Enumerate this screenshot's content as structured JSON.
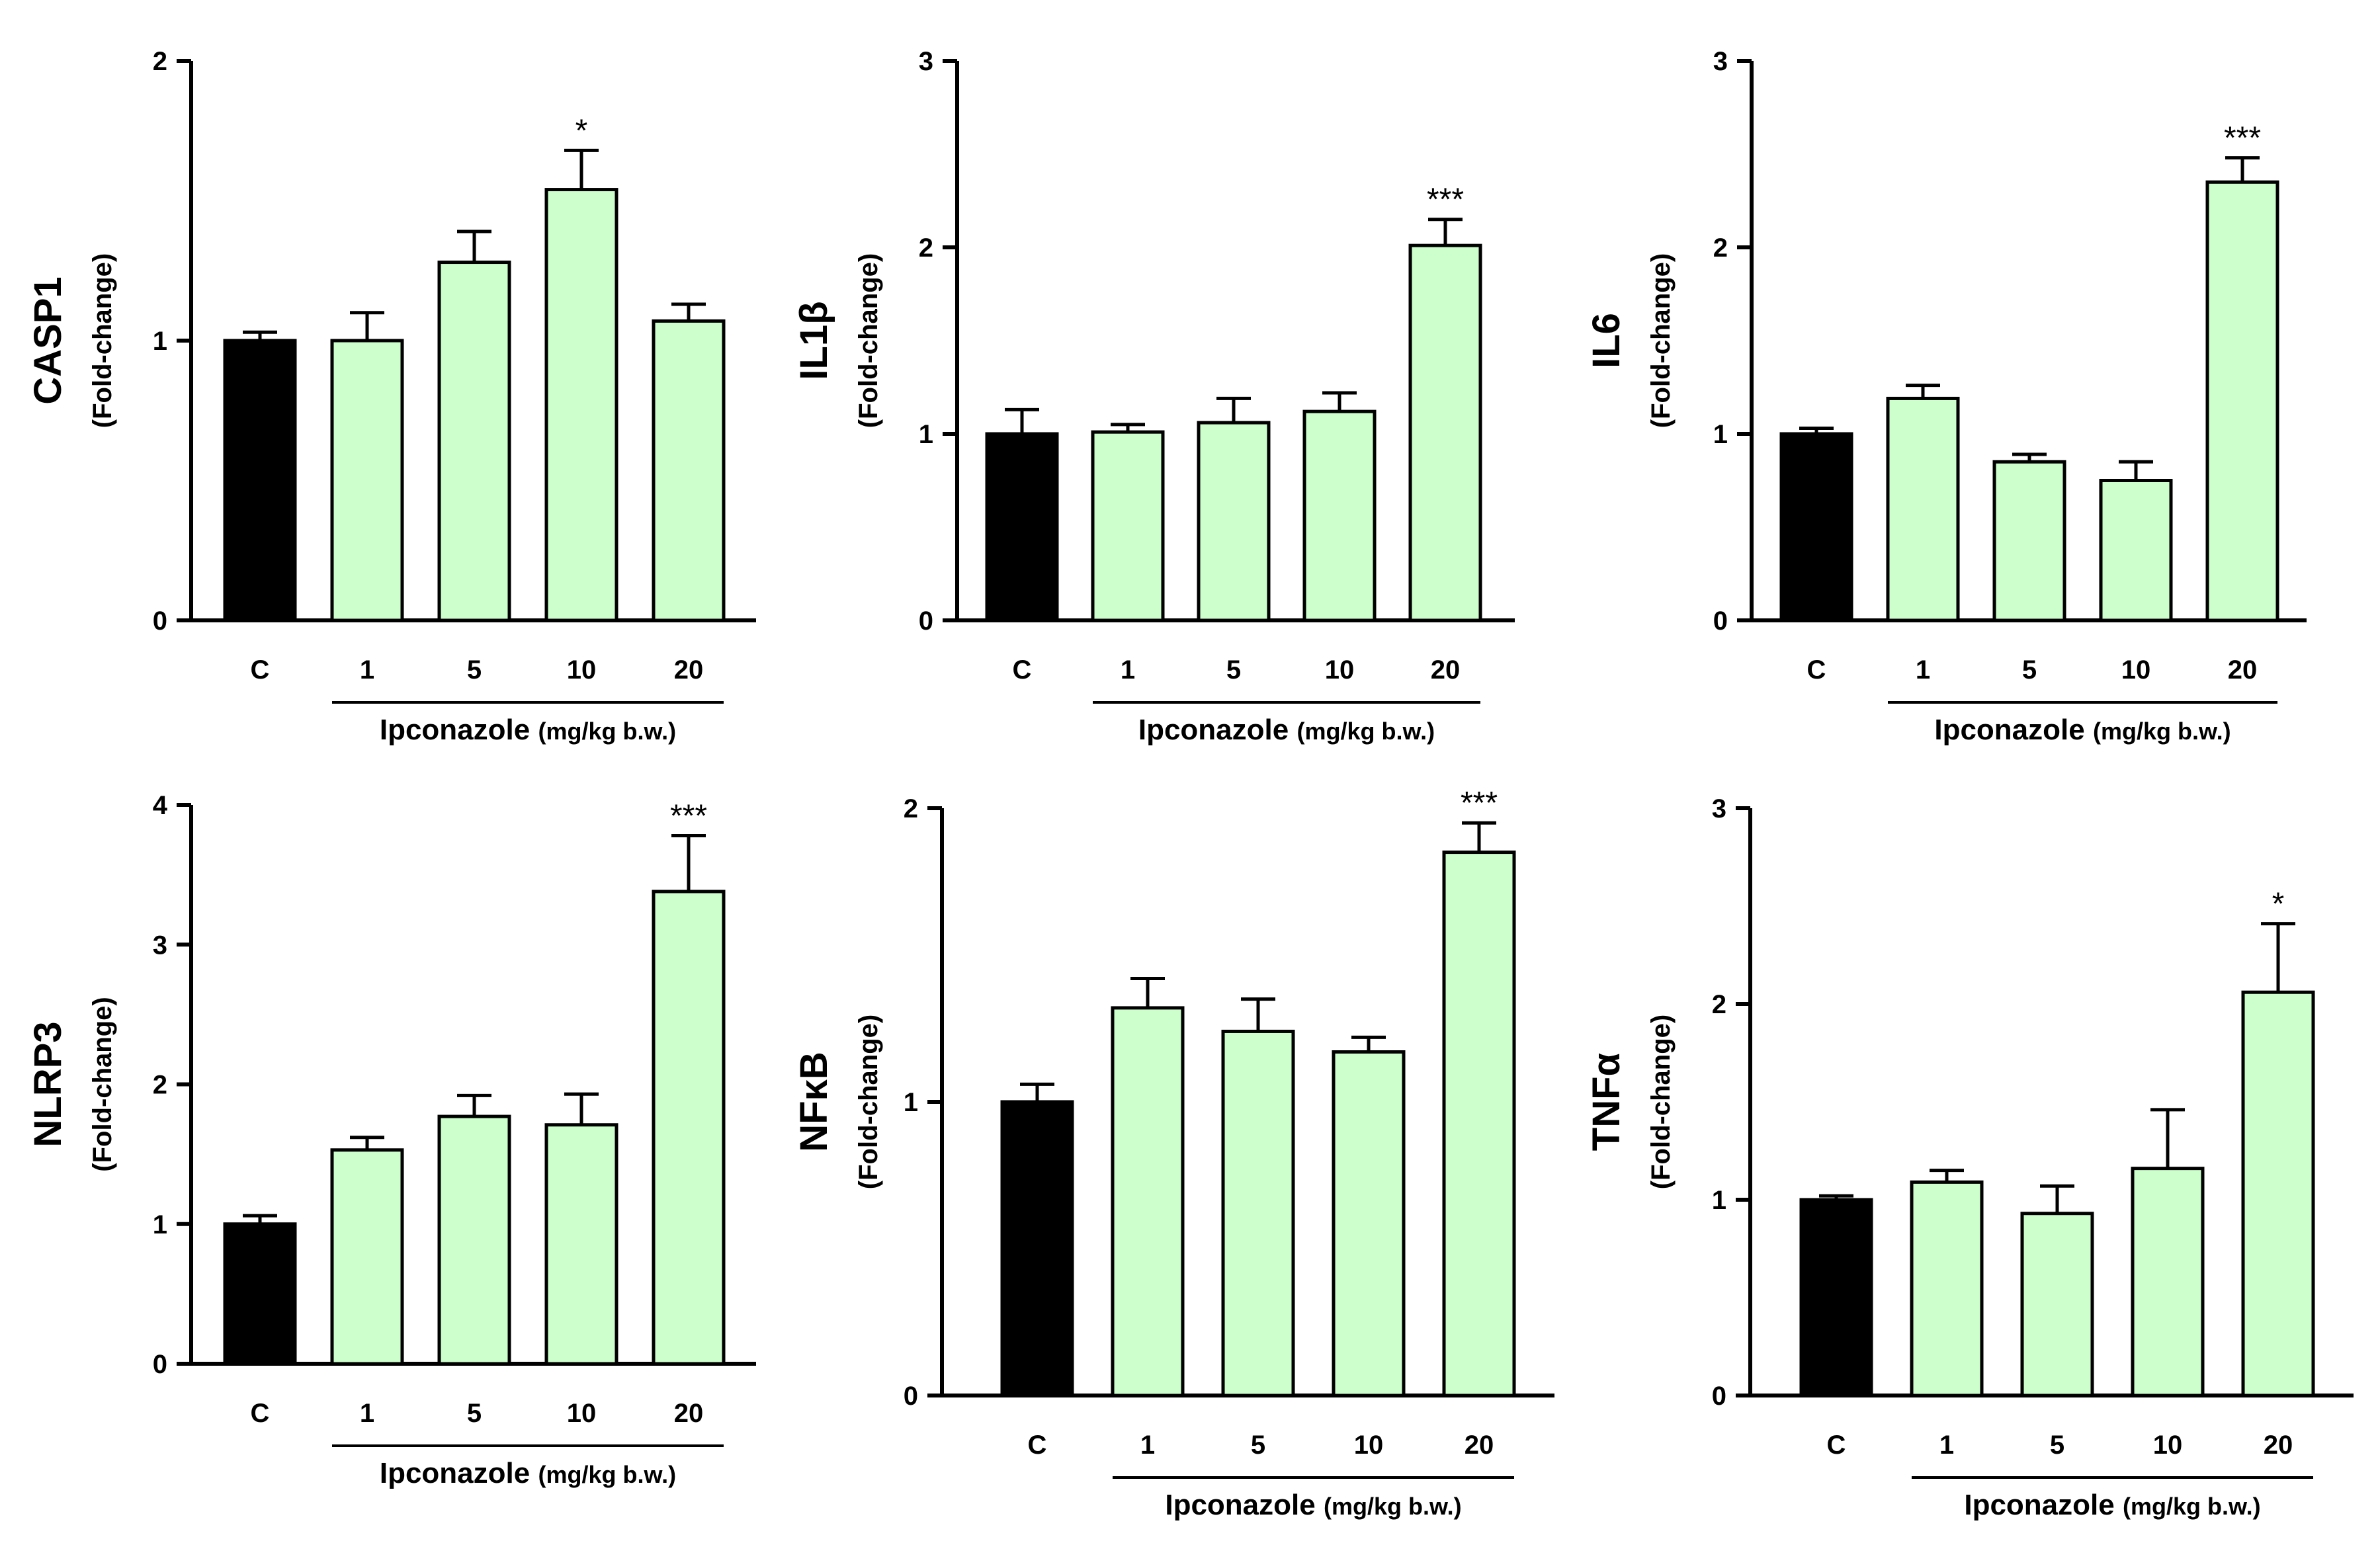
{
  "colors": {
    "control": "#000000",
    "treated": "#ccffcc",
    "axis": "#000000"
  },
  "chart_data": [
    {
      "type": "bar",
      "ylabel": "CASP1",
      "ylabel_unit": "(Fold-change)",
      "ylim": [
        0,
        2
      ],
      "yticks": [
        "0",
        "1",
        "2"
      ],
      "categories": [
        "C",
        "1",
        "5",
        "10",
        "20"
      ],
      "values": [
        1.0,
        1.0,
        1.28,
        1.54,
        1.07
      ],
      "errors": [
        0.03,
        0.1,
        0.11,
        0.14,
        0.06
      ],
      "significance": [
        "",
        "",
        "",
        "*",
        ""
      ],
      "xgroup_label": "Ipconazole",
      "xgroup_unit": "(mg/kg b.w.)"
    },
    {
      "type": "bar",
      "ylabel": "IL1β",
      "ylabel_unit": "(Fold-change)",
      "ylim": [
        0,
        3
      ],
      "yticks": [
        "0",
        "1",
        "2",
        "3"
      ],
      "categories": [
        "C",
        "1",
        "5",
        "10",
        "20"
      ],
      "values": [
        1.0,
        1.01,
        1.06,
        1.12,
        2.01
      ],
      "errors": [
        0.13,
        0.04,
        0.13,
        0.1,
        0.14
      ],
      "significance": [
        "",
        "",
        "",
        "",
        "***"
      ],
      "xgroup_label": "Ipconazole",
      "xgroup_unit": "(mg/kg b.w.)"
    },
    {
      "type": "bar",
      "ylabel": "IL6",
      "ylabel_unit": "(Fold-change)",
      "ylim": [
        0,
        3
      ],
      "yticks": [
        "0",
        "1",
        "2",
        "3"
      ],
      "categories": [
        "C",
        "1",
        "5",
        "10",
        "20"
      ],
      "values": [
        1.0,
        1.19,
        0.85,
        0.75,
        2.35
      ],
      "errors": [
        0.03,
        0.07,
        0.04,
        0.1,
        0.13
      ],
      "significance": [
        "",
        "",
        "",
        "",
        "***"
      ],
      "xgroup_label": "Ipconazole",
      "xgroup_unit": "(mg/kg b.w.)"
    },
    {
      "type": "bar",
      "ylabel": "NLRP3",
      "ylabel_unit": "(Fold-change)",
      "ylim": [
        0,
        4
      ],
      "yticks": [
        "0",
        "1",
        "2",
        "3",
        "4"
      ],
      "categories": [
        "C",
        "1",
        "5",
        "10",
        "20"
      ],
      "values": [
        1.0,
        1.53,
        1.77,
        1.71,
        3.38
      ],
      "errors": [
        0.06,
        0.09,
        0.15,
        0.22,
        0.4
      ],
      "significance": [
        "",
        "",
        "",
        "",
        "***"
      ],
      "xgroup_label": "Ipconazole",
      "xgroup_unit": "(mg/kg b.w.)"
    },
    {
      "type": "bar",
      "ylabel": "NFκB",
      "ylabel_unit": "(Fold-change)",
      "ylim": [
        0,
        2
      ],
      "yticks": [
        "0",
        "1",
        "2"
      ],
      "categories": [
        "C",
        "1",
        "5",
        "10",
        "20"
      ],
      "values": [
        1.0,
        1.32,
        1.24,
        1.17,
        1.85
      ],
      "errors": [
        0.06,
        0.1,
        0.11,
        0.05,
        0.1
      ],
      "significance": [
        "",
        "",
        "",
        "",
        "***"
      ],
      "xgroup_label": "Ipconazole",
      "xgroup_unit": "(mg/kg b.w.)"
    },
    {
      "type": "bar",
      "ylabel": "TNFα",
      "ylabel_unit": "(Fold-change)",
      "ylim": [
        0,
        3
      ],
      "yticks": [
        "0",
        "1",
        "2",
        "3"
      ],
      "categories": [
        "C",
        "1",
        "5",
        "10",
        "20"
      ],
      "values": [
        1.0,
        1.09,
        0.93,
        1.16,
        2.06
      ],
      "errors": [
        0.02,
        0.06,
        0.14,
        0.3,
        0.35
      ],
      "significance": [
        "",
        "",
        "",
        "",
        "*"
      ],
      "xgroup_label": "Ipconazole",
      "xgroup_unit": "(mg/kg b.w.)"
    }
  ]
}
